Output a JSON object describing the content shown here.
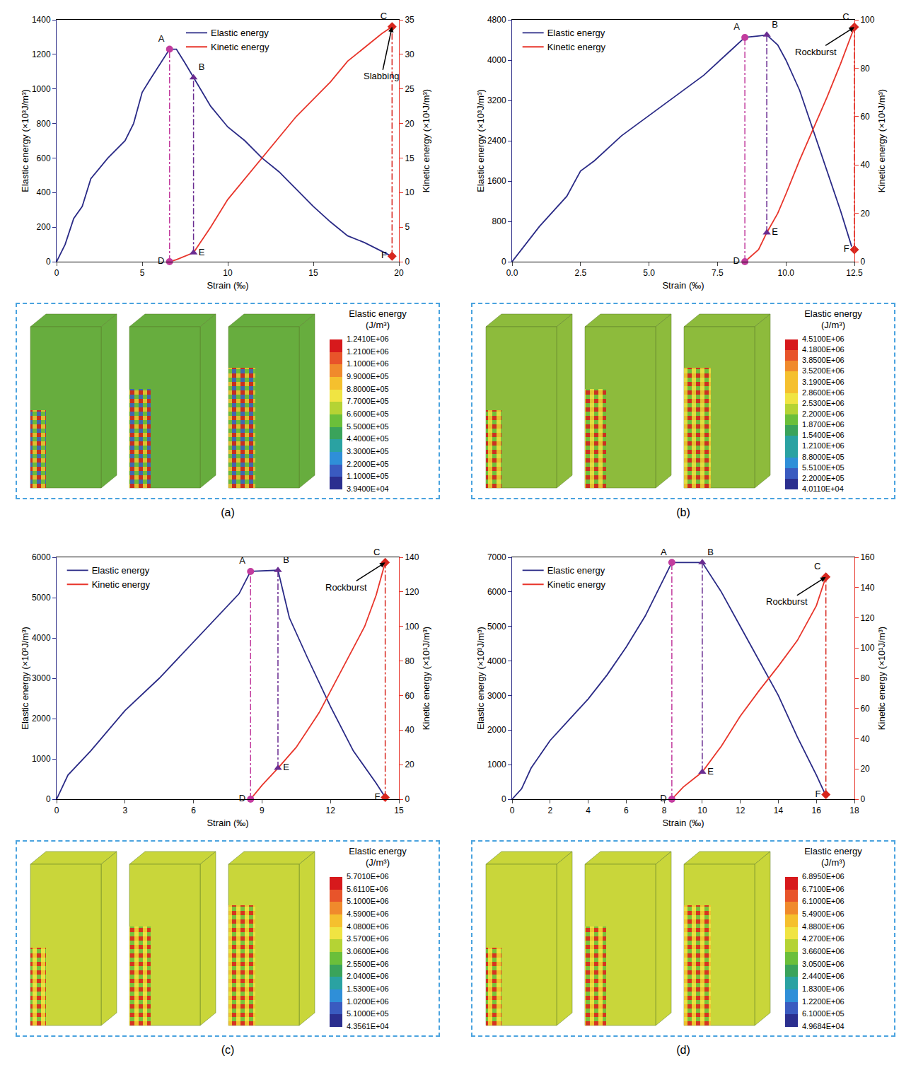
{
  "chart_data": [
    {
      "type": "line",
      "panel_label": "(a)",
      "x_label": "Strain (‰)",
      "y_label": "Elastic energy (×10³J/m³)",
      "y2_label": "Kinetic energy (×10¹J/m³)",
      "xlim": [
        0,
        20
      ],
      "xticks": [
        0,
        5,
        10,
        15,
        20
      ],
      "ylim": [
        0,
        1400
      ],
      "yticks": [
        0,
        200,
        400,
        600,
        800,
        1000,
        1200,
        1400
      ],
      "y2lim": [
        0,
        35
      ],
      "y2ticks": [
        0,
        5,
        10,
        15,
        20,
        25,
        30,
        35
      ],
      "legend": "top",
      "series": [
        {
          "name": "Elastic energy",
          "color": "#2a2a86",
          "x": [
            0,
            0.5,
            1,
            1.5,
            2,
            3,
            4,
            4.5,
            5,
            5.5,
            6.6,
            7,
            7.5,
            8,
            8.5,
            9,
            10,
            11,
            12,
            13,
            14,
            15,
            16,
            17,
            18,
            19,
            19.6
          ],
          "values": [
            0,
            100,
            250,
            320,
            480,
            600,
            700,
            800,
            980,
            1060,
            1230,
            1230,
            1150,
            1065,
            980,
            900,
            780,
            700,
            600,
            520,
            420,
            320,
            230,
            150,
            110,
            60,
            30
          ]
        },
        {
          "name": "Kinetic energy",
          "color": "#e8352b",
          "axis": "y2",
          "x": [
            6.6,
            7,
            8,
            9,
            10,
            11,
            12,
            13,
            14,
            15,
            16,
            17,
            18,
            19,
            19.6
          ],
          "values": [
            0,
            0.3,
            1.3,
            5,
            9,
            12,
            15,
            18,
            21,
            23.5,
            26,
            29,
            31,
            33,
            34
          ]
        }
      ],
      "points": [
        {
          "label": "A",
          "x": 6.6,
          "y": 1230,
          "axis": "y",
          "marker": "circle",
          "color": "#c23c9e"
        },
        {
          "label": "B",
          "x": 8.0,
          "y": 1065,
          "axis": "y",
          "marker": "triangle-up",
          "color": "#6a2c91"
        },
        {
          "label": "C",
          "x": 19.6,
          "y": 34,
          "axis": "y2",
          "marker": "diamond",
          "color": "#d7261e"
        },
        {
          "label": "D",
          "x": 6.6,
          "y": 0,
          "axis": "y2",
          "marker": "circle",
          "color": "#c23c9e"
        },
        {
          "label": "E",
          "x": 8.0,
          "y": 1.3,
          "axis": "y2",
          "marker": "triangle-up",
          "color": "#6a2c91"
        },
        {
          "label": "F",
          "x": 19.6,
          "y": 0.8,
          "axis": "y2",
          "marker": "diamond",
          "color": "#d7261e"
        }
      ],
      "annotations": [
        {
          "text": "Slabbing",
          "x": 19.6,
          "y": 34,
          "axis": "y2"
        }
      ],
      "colorbar": {
        "title": [
          "Elastic energy",
          "(J/m³)"
        ],
        "labels": [
          "1.2410E+06",
          "1.2100E+06",
          "1.1000E+06",
          "9.9000E+05",
          "8.8000E+05",
          "7.7000E+05",
          "6.6000E+05",
          "5.5000E+05",
          "4.4000E+05",
          "3.3000E+05",
          "2.2000E+05",
          "1.1000E+05",
          "3.9400E+04"
        ]
      }
    },
    {
      "type": "line",
      "panel_label": "(b)",
      "x_label": "Strain (‰)",
      "y_label": "Elastic energy (×10³J/m³)",
      "y2_label": "Kinetic energy (×10¹J/m³)",
      "xlim": [
        0,
        12.5
      ],
      "xticks": [
        {
          "value": 0,
          "label": "0.0"
        },
        {
          "value": 2.5,
          "label": "2.5"
        },
        {
          "value": 5,
          "label": "5.0"
        },
        {
          "value": 7.5,
          "label": "7.5"
        },
        {
          "value": 10,
          "label": "10.0"
        },
        {
          "value": 12.5,
          "label": "12.5"
        }
      ],
      "ylim": [
        0,
        4800
      ],
      "yticks": [
        0,
        800,
        1600,
        2400,
        3200,
        4000,
        4800
      ],
      "y2lim": [
        0,
        100
      ],
      "y2ticks": [
        0,
        20,
        40,
        60,
        80,
        100
      ],
      "legend": "upper left",
      "series": [
        {
          "name": "Elastic energy",
          "color": "#2a2a86",
          "x": [
            0,
            1,
            2,
            2.5,
            3,
            4,
            5,
            6,
            7,
            8,
            8.5,
            9,
            9.3,
            9.7,
            10,
            10.5,
            11,
            11.5,
            12,
            12.4
          ],
          "values": [
            0,
            700,
            1300,
            1800,
            2000,
            2500,
            2900,
            3300,
            3700,
            4200,
            4450,
            4480,
            4500,
            4300,
            4000,
            3400,
            2600,
            1800,
            1000,
            300
          ]
        },
        {
          "name": "Kinetic energy",
          "color": "#e8352b",
          "axis": "y2",
          "x": [
            8.5,
            9,
            9.3,
            9.7,
            10,
            10.5,
            11,
            11.5,
            12,
            12.5
          ],
          "values": [
            0,
            5,
            12,
            20,
            28,
            42,
            55,
            68,
            82,
            97
          ]
        }
      ],
      "points": [
        {
          "label": "A",
          "x": 8.5,
          "y": 4450,
          "axis": "y",
          "marker": "circle",
          "color": "#c23c9e"
        },
        {
          "label": "B",
          "x": 9.3,
          "y": 4500,
          "axis": "y",
          "marker": "triangle-up",
          "color": "#6a2c91"
        },
        {
          "label": "C",
          "x": 12.5,
          "y": 97,
          "axis": "y2",
          "marker": "diamond",
          "color": "#d7261e"
        },
        {
          "label": "D",
          "x": 8.5,
          "y": 0,
          "axis": "y2",
          "marker": "circle",
          "color": "#c23c9e"
        },
        {
          "label": "E",
          "x": 9.3,
          "y": 12,
          "axis": "y2",
          "marker": "triangle-up",
          "color": "#6a2c91"
        },
        {
          "label": "F",
          "x": 12.5,
          "y": 5,
          "axis": "y2",
          "marker": "diamond",
          "color": "#d7261e"
        }
      ],
      "annotations": [
        {
          "text": "Rockburst",
          "x": 12.5,
          "y": 97,
          "axis": "y2"
        }
      ],
      "colorbar": {
        "title": [
          "Elastic energy",
          "(J/m³)"
        ],
        "labels": [
          "4.5100E+06",
          "4.1800E+06",
          "3.8500E+06",
          "3.5200E+06",
          "3.1900E+06",
          "2.8600E+06",
          "2.5300E+06",
          "2.2000E+06",
          "1.8700E+06",
          "1.5400E+06",
          "1.2100E+06",
          "8.8000E+05",
          "5.5100E+05",
          "2.2000E+05",
          "4.0110E+04"
        ]
      }
    },
    {
      "type": "line",
      "panel_label": "(c)",
      "x_label": "Strain (‰)",
      "y_label": "Elastic energy (×10³J/m³)",
      "y2_label": "Kinetic energy (×10¹J/m³)",
      "xlim": [
        0,
        15
      ],
      "xticks": [
        0,
        3,
        6,
        9,
        12,
        15
      ],
      "ylim": [
        0,
        6000
      ],
      "yticks": [
        0,
        1000,
        2000,
        3000,
        4000,
        5000,
        6000
      ],
      "y2lim": [
        0,
        140
      ],
      "y2ticks": [
        0,
        20,
        40,
        60,
        80,
        100,
        120,
        140
      ],
      "legend": "upper left",
      "series": [
        {
          "name": "Elastic energy",
          "color": "#2a2a86",
          "x": [
            0,
            0.5,
            1.5,
            3,
            4.5,
            6,
            7,
            8,
            8.5,
            9.7,
            10.2,
            11,
            12,
            13,
            14,
            14.4
          ],
          "values": [
            0,
            600,
            1200,
            2200,
            3000,
            3900,
            4500,
            5100,
            5650,
            5680,
            4500,
            3500,
            2300,
            1200,
            400,
            50
          ]
        },
        {
          "name": "Kinetic energy",
          "color": "#e8352b",
          "axis": "y2",
          "x": [
            8.5,
            9,
            9.7,
            10.5,
            11.5,
            12.5,
            13.5,
            14,
            14.4
          ],
          "values": [
            0,
            8,
            18,
            30,
            50,
            75,
            100,
            118,
            137
          ]
        }
      ],
      "points": [
        {
          "label": "A",
          "x": 8.5,
          "y": 5650,
          "axis": "y",
          "marker": "circle",
          "color": "#c23c9e"
        },
        {
          "label": "B",
          "x": 9.7,
          "y": 5680,
          "axis": "y",
          "marker": "triangle-up",
          "color": "#6a2c91"
        },
        {
          "label": "C",
          "x": 14.4,
          "y": 137,
          "axis": "y2",
          "marker": "diamond",
          "color": "#d7261e"
        },
        {
          "label": "D",
          "x": 8.5,
          "y": 0,
          "axis": "y2",
          "marker": "circle",
          "color": "#c23c9e"
        },
        {
          "label": "E",
          "x": 9.7,
          "y": 18,
          "axis": "y2",
          "marker": "triangle-up",
          "color": "#6a2c91"
        },
        {
          "label": "F",
          "x": 14.4,
          "y": 1,
          "axis": "y2",
          "marker": "diamond",
          "color": "#d7261e"
        }
      ],
      "annotations": [
        {
          "text": "Rockburst",
          "x": 14.4,
          "y": 137,
          "axis": "y2"
        }
      ],
      "colorbar": {
        "title": [
          "Elastic energy",
          "(J/m³)"
        ],
        "labels": [
          "5.7010E+06",
          "5.6110E+06",
          "5.1000E+06",
          "4.5900E+06",
          "4.0800E+06",
          "3.5700E+06",
          "3.0600E+06",
          "2.5500E+06",
          "2.0400E+06",
          "1.5300E+06",
          "1.0200E+06",
          "5.1000E+05",
          "4.3561E+04"
        ]
      }
    },
    {
      "type": "line",
      "panel_label": "(d)",
      "x_label": "Strain (‰)",
      "y_label": "Elastic energy (×10³J/m³)",
      "y2_label": "Kinetic energy (×10¹J/m³)",
      "xlim": [
        0,
        18
      ],
      "xticks": [
        0,
        2,
        4,
        6,
        8,
        10,
        12,
        14,
        16,
        18
      ],
      "ylim": [
        0,
        7000
      ],
      "yticks": [
        0,
        1000,
        2000,
        3000,
        4000,
        5000,
        6000,
        7000
      ],
      "y2lim": [
        0,
        160
      ],
      "y2ticks": [
        0,
        20,
        40,
        60,
        80,
        100,
        120,
        140,
        160
      ],
      "legend": "upper left",
      "series": [
        {
          "name": "Elastic energy",
          "color": "#2a2a86",
          "x": [
            0,
            0.5,
            1,
            2,
            3,
            4,
            5,
            6,
            7,
            8,
            8.4,
            10,
            11,
            12,
            13,
            14,
            15,
            16,
            16.5
          ],
          "values": [
            0,
            300,
            900,
            1700,
            2300,
            2900,
            3600,
            4400,
            5300,
            6400,
            6850,
            6850,
            6000,
            5000,
            4000,
            3000,
            1800,
            700,
            100
          ]
        },
        {
          "name": "Kinetic energy",
          "color": "#e8352b",
          "axis": "y2",
          "x": [
            8.4,
            9,
            10,
            11,
            12,
            13,
            14,
            15,
            16,
            16.5
          ],
          "values": [
            0,
            8,
            18,
            35,
            55,
            72,
            88,
            105,
            128,
            147
          ]
        }
      ],
      "points": [
        {
          "label": "A",
          "x": 8.4,
          "y": 6850,
          "axis": "y",
          "marker": "circle",
          "color": "#c23c9e"
        },
        {
          "label": "B",
          "x": 10,
          "y": 6850,
          "axis": "y",
          "marker": "triangle-up",
          "color": "#6a2c91"
        },
        {
          "label": "C",
          "x": 16.5,
          "y": 147,
          "axis": "y2",
          "marker": "diamond",
          "color": "#d7261e"
        },
        {
          "label": "D",
          "x": 8.4,
          "y": 0,
          "axis": "y2",
          "marker": "circle",
          "color": "#c23c9e"
        },
        {
          "label": "E",
          "x": 10,
          "y": 18,
          "axis": "y2",
          "marker": "triangle-up",
          "color": "#6a2c91"
        },
        {
          "label": "F",
          "x": 16.5,
          "y": 3,
          "axis": "y2",
          "marker": "diamond",
          "color": "#d7261e"
        }
      ],
      "annotations": [
        {
          "text": "Rockburst",
          "x": 16.5,
          "y": 147,
          "axis": "y2"
        }
      ],
      "colorbar": {
        "title": [
          "Elastic energy",
          "(J/m³)"
        ],
        "labels": [
          "6.8950E+06",
          "6.7100E+06",
          "6.1000E+06",
          "5.4900E+06",
          "4.8800E+06",
          "4.2700E+06",
          "3.6600E+06",
          "3.0500E+06",
          "2.4400E+06",
          "1.8300E+06",
          "1.2200E+06",
          "6.1000E+05",
          "4.9684E+04"
        ]
      }
    }
  ]
}
